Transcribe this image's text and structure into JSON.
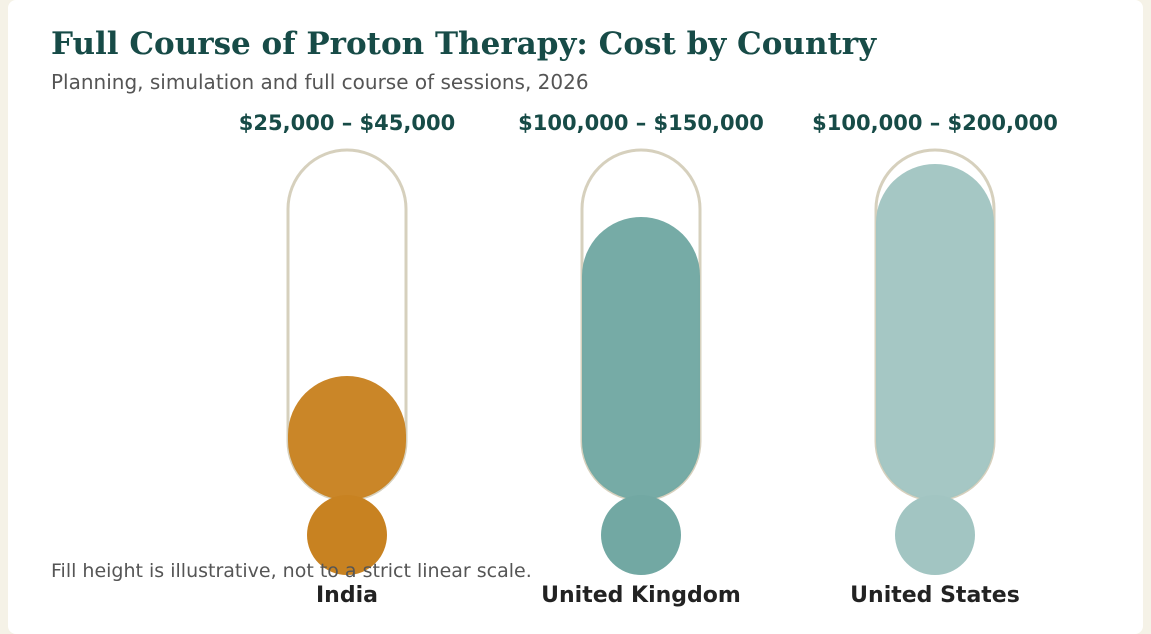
{
  "title": "Full Course of Proton Therapy: Cost by Country",
  "subtitle": "Planning, simulation and full course of sessions, 2026",
  "footnote": "Fill height is illustrative, not to a strict linear scale.",
  "chart_data": {
    "type": "bar",
    "style": "thermometer",
    "categories": [
      "India",
      "United Kingdom",
      "United States"
    ],
    "ranges": [
      {
        "low": 25000,
        "high": 45000,
        "label": "$25,000 – $45,000",
        "color": "#c88221",
        "fill_fraction": 0.4
      },
      {
        "low": 100000,
        "high": 150000,
        "label": "$100,000 – $150,000",
        "color": "#72a8a3",
        "fill_fraction": 0.85
      },
      {
        "low": 100000,
        "high": 200000,
        "label": "$100,000 – $200,000",
        "color": "#a2c5c2",
        "fill_fraction": 1.0
      }
    ],
    "grid": false,
    "legend": "none"
  }
}
